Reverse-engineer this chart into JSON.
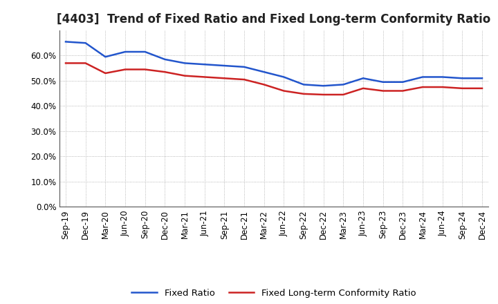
{
  "title": "[4403]  Trend of Fixed Ratio and Fixed Long-term Conformity Ratio",
  "x_labels": [
    "Sep-19",
    "Dec-19",
    "Mar-20",
    "Jun-20",
    "Sep-20",
    "Dec-20",
    "Mar-21",
    "Jun-21",
    "Sep-21",
    "Dec-21",
    "Mar-22",
    "Jun-22",
    "Sep-22",
    "Dec-22",
    "Mar-23",
    "Jun-23",
    "Sep-23",
    "Dec-23",
    "Mar-24",
    "Jun-24",
    "Sep-24",
    "Dec-24"
  ],
  "fixed_ratio": [
    65.5,
    65.0,
    59.5,
    61.5,
    61.5,
    58.5,
    57.0,
    56.5,
    56.0,
    55.5,
    53.5,
    51.5,
    48.5,
    48.0,
    48.5,
    51.0,
    49.5,
    49.5,
    51.5,
    51.5,
    51.0,
    51.0
  ],
  "fixed_lt_ratio": [
    57.0,
    57.0,
    53.0,
    54.5,
    54.5,
    53.5,
    52.0,
    51.5,
    51.0,
    50.5,
    48.5,
    46.0,
    44.8,
    44.5,
    44.5,
    47.0,
    46.0,
    46.0,
    47.5,
    47.5,
    47.0,
    47.0
  ],
  "fixed_ratio_color": "#2255cc",
  "fixed_lt_ratio_color": "#cc2222",
  "ylim": [
    0,
    70
  ],
  "yticks": [
    0,
    10,
    20,
    30,
    40,
    50,
    60
  ],
  "ytick_labels": [
    "0.0%",
    "10.0%",
    "20.0%",
    "30.0%",
    "40.0%",
    "50.0%",
    "60.0%"
  ],
  "legend_fixed_ratio": "Fixed Ratio",
  "legend_fixed_lt_ratio": "Fixed Long-term Conformity Ratio",
  "background_color": "#ffffff",
  "grid_color": "#999999",
  "title_fontsize": 12,
  "axis_fontsize": 8.5,
  "legend_fontsize": 9.5
}
